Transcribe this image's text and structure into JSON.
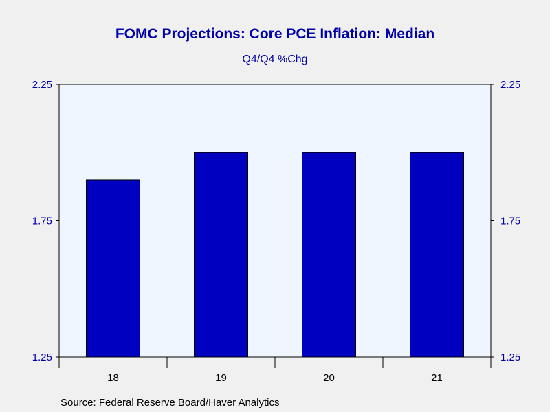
{
  "chart_data": {
    "type": "bar",
    "title": "FOMC Projections: Core PCE Inflation: Median",
    "subtitle": "Q4/Q4 %Chg",
    "categories": [
      "18",
      "19",
      "20",
      "21"
    ],
    "values": [
      1.9,
      2.0,
      2.0,
      2.0
    ],
    "ylim": [
      1.25,
      2.25
    ],
    "yticks": [
      "1.25",
      "1.75",
      "2.25"
    ],
    "legend": "none",
    "grid": false,
    "colors": {
      "bar": "#0000c0",
      "plot_background": "#f0f6ff",
      "page_background": "#f0f0f0",
      "text": "#0000a8"
    }
  },
  "source": "Source:  Federal Reserve Board/Haver Analytics"
}
